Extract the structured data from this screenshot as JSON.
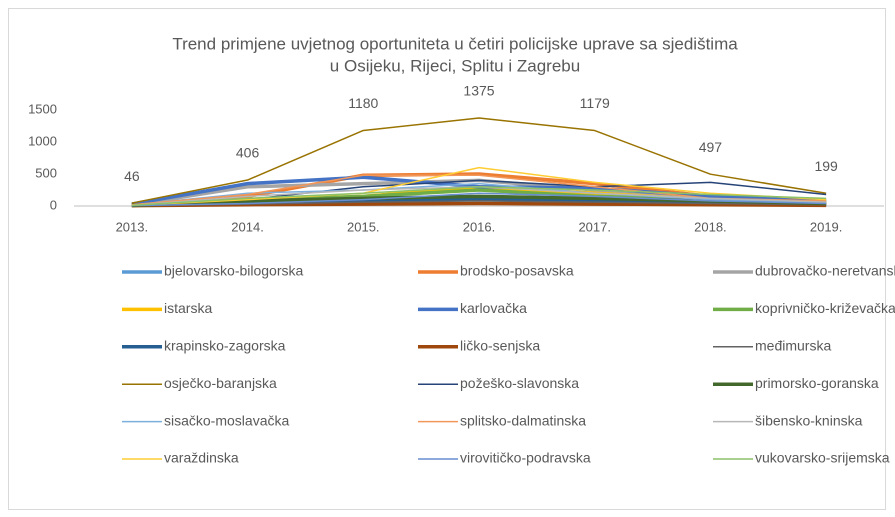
{
  "chart_data": {
    "type": "line",
    "title": [
      "Trend primjene uvjetnog oportuniteta u četiri policijske uprave sa sjedištima",
      "u Osijeku, Rijeci, Splitu i Zagrebu"
    ],
    "categories": [
      "2013.",
      "2014.",
      "2015.",
      "2016.",
      "2017.",
      "2018.",
      "2019."
    ],
    "ylim": [
      0,
      1500
    ],
    "yticks": [
      0,
      500,
      1000,
      1500
    ],
    "grid": false,
    "legend": "bottom",
    "series": [
      {
        "name": "bjelovarsko-bilogorska",
        "color": "#5b9bd5",
        "width": 3.5,
        "values": [
          10,
          60,
          100,
          120,
          80,
          50,
          30
        ]
      },
      {
        "name": "brodsko-posavska",
        "color": "#ed7d31",
        "width": 3.5,
        "values": [
          20,
          150,
          480,
          500,
          350,
          150,
          60
        ]
      },
      {
        "name": "dubrovačko-neretvanska",
        "color": "#a5a5a5",
        "width": 3.5,
        "values": [
          15,
          300,
          350,
          400,
          250,
          150,
          80
        ]
      },
      {
        "name": "istarska",
        "color": "#ffc000",
        "width": 3.5,
        "values": [
          5,
          50,
          150,
          300,
          200,
          100,
          50
        ]
      },
      {
        "name": "karlovačka",
        "color": "#4472c4",
        "width": 3.5,
        "values": [
          30,
          350,
          450,
          300,
          280,
          150,
          80
        ]
      },
      {
        "name": "koprivničko-križevačka",
        "color": "#70ad47",
        "width": 3.5,
        "values": [
          5,
          100,
          150,
          250,
          150,
          100,
          50
        ]
      },
      {
        "name": "krapinsko-zagorska",
        "color": "#255e91",
        "width": 3.5,
        "values": [
          10,
          50,
          80,
          100,
          80,
          40,
          20
        ]
      },
      {
        "name": "ličko-senjska",
        "color": "#9e480e",
        "width": 3.5,
        "values": [
          5,
          20,
          30,
          40,
          30,
          20,
          10
        ]
      },
      {
        "name": "međimurska",
        "color": "#636363",
        "width": 1.5,
        "values": [
          5,
          30,
          60,
          80,
          60,
          40,
          20
        ]
      },
      {
        "name": "osječko-baranjska",
        "color": "#997300",
        "width": 1.5,
        "values": [
          46,
          406,
          1180,
          1375,
          1179,
          497,
          199
        ],
        "labels": true
      },
      {
        "name": "požeško-slavonska",
        "color": "#264478",
        "width": 1.5,
        "values": [
          10,
          100,
          300,
          400,
          300,
          370,
          180
        ]
      },
      {
        "name": "primorsko-goranska",
        "color": "#43682b",
        "width": 3.5,
        "values": [
          10,
          80,
          120,
          150,
          120,
          80,
          40
        ]
      },
      {
        "name": "sisačko-moslavačka",
        "color": "#7cafdd",
        "width": 1.5,
        "values": [
          15,
          200,
          250,
          350,
          200,
          100,
          50
        ]
      },
      {
        "name": "splitsko-dalmatinska",
        "color": "#f1975a",
        "width": 1.5,
        "values": [
          20,
          180,
          480,
          480,
          300,
          120,
          80
        ]
      },
      {
        "name": "šibensko-kninska",
        "color": "#b7b7b7",
        "width": 1.5,
        "values": [
          10,
          150,
          250,
          300,
          200,
          120,
          60
        ]
      },
      {
        "name": "varaždinska",
        "color": "#ffcd33",
        "width": 1.5,
        "values": [
          10,
          100,
          200,
          600,
          370,
          200,
          100
        ]
      },
      {
        "name": "virovitičko-podravska",
        "color": "#698ed0",
        "width": 1.5,
        "values": [
          5,
          40,
          100,
          200,
          150,
          80,
          40
        ]
      },
      {
        "name": "vukovarsko-srijemska",
        "color": "#8cc168",
        "width": 1.5,
        "values": [
          10,
          120,
          200,
          300,
          250,
          180,
          120
        ]
      }
    ]
  }
}
